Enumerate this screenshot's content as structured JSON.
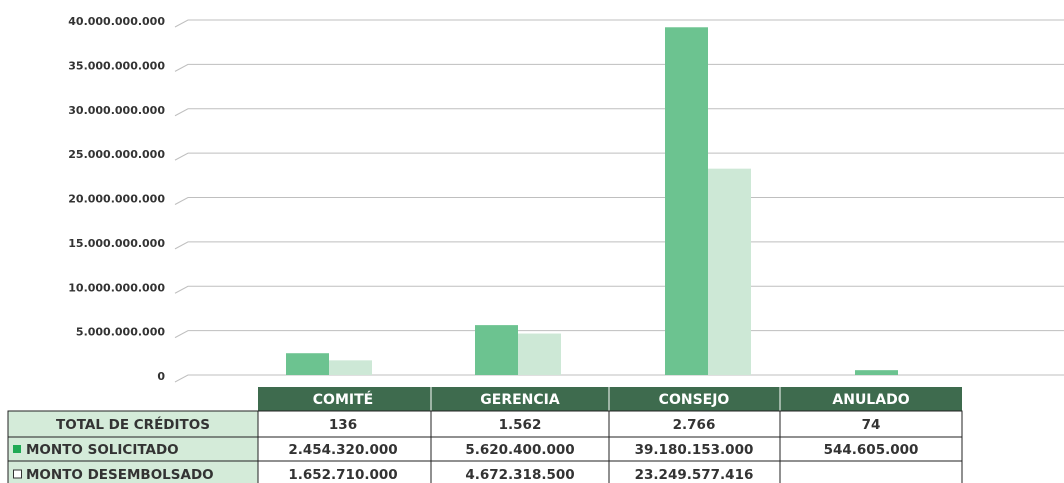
{
  "chart_data": {
    "type": "bar",
    "categories": [
      "COMITÉ",
      "GERENCIA",
      "CONSEJO",
      "ANULADO"
    ],
    "totals": {
      "name": "TOTAL DE CRÉDITOS",
      "values": [
        136,
        1562,
        2766,
        74
      ],
      "value_labels": [
        "136",
        "1.562",
        "2.766",
        "74"
      ]
    },
    "series": [
      {
        "name": "MONTO SOLICITADO",
        "color": "#6cc390",
        "values": [
          2454320000,
          5620400000,
          39180153000,
          544605000
        ],
        "value_labels": [
          "2.454.320.000",
          "5.620.400.000",
          "39.180.153.000",
          "544.605.000"
        ]
      },
      {
        "name": "MONTO DESEMBOLSADO",
        "color": "#cde8d6",
        "values": [
          1652710000,
          4672318500,
          23249577416,
          null
        ],
        "value_labels": [
          "1.652.710.000",
          "4.672.318.500",
          "23.249.577.416",
          null
        ]
      }
    ],
    "ylim": [
      0,
      40000000000
    ],
    "yticks": [
      0,
      {
        "value": 5000000000,
        "label": "5.000.000.000"
      },
      {
        "value": 10000000000,
        "label": "10.000.000.000"
      },
      {
        "value": 15000000000,
        "label": "15.000.000.000"
      },
      {
        "value": 20000000000,
        "label": "20.000.000.000"
      },
      {
        "value": 25000000000,
        "label": "25.000.000.000"
      },
      {
        "value": 30000000000,
        "label": "30.000.000.000"
      },
      {
        "value": 35000000000,
        "label": "35.000.000.000"
      },
      {
        "value": 40000000000,
        "label": "40.000.000.000"
      }
    ],
    "grid": true,
    "header_color": "#3e6b4e",
    "label_cell_color": "#d4ebd9"
  }
}
